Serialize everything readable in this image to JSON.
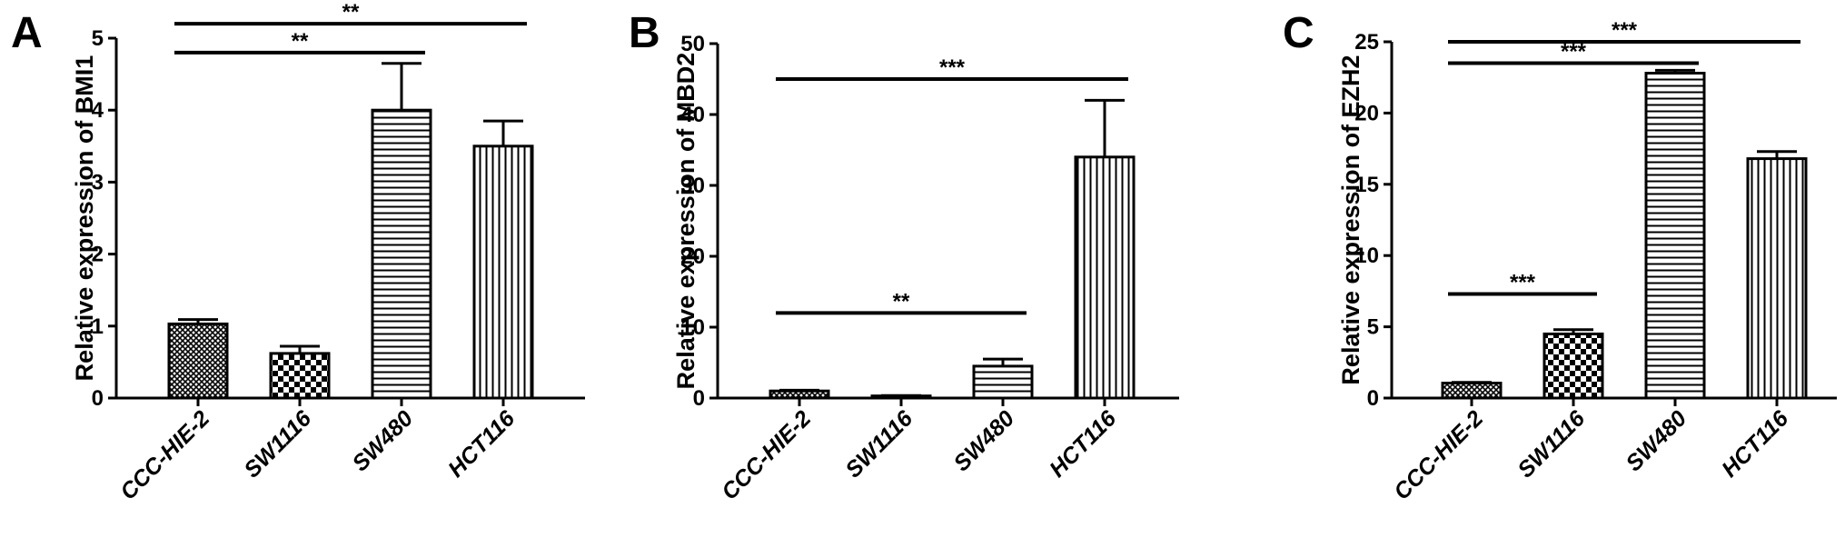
{
  "chart_data": [
    {
      "type": "bar",
      "panel": "A",
      "categories": [
        "CCC-HIE-2",
        "SW1116",
        "SW480",
        "HCT116"
      ],
      "values": [
        1.03,
        0.62,
        4.0,
        3.5
      ],
      "errors": [
        0.06,
        0.1,
        0.65,
        0.35
      ],
      "patterns": [
        "crosshatch",
        "checker",
        "hlines",
        "vlines"
      ],
      "ylabel": "Relative expression of BMI1",
      "ylim": [
        0,
        5
      ],
      "yticks": [
        0,
        1,
        2,
        3,
        4,
        5
      ],
      "significance": [
        {
          "from": 0,
          "to": 3,
          "label": "**",
          "y": 5.2
        },
        {
          "from": 0,
          "to": 2,
          "label": "**",
          "y": 4.8
        }
      ]
    },
    {
      "type": "bar",
      "panel": "B",
      "categories": [
        "CCC-HIE-2",
        "SW1116",
        "SW480",
        "HCT116"
      ],
      "values": [
        1.0,
        0.3,
        4.5,
        34.0
      ],
      "errors": [
        0.1,
        0.05,
        1.0,
        8.0
      ],
      "patterns": [
        "crosshatch",
        "checker",
        "hlines",
        "vlines"
      ],
      "ylabel": "Relative expression of MBD2",
      "ylim": [
        0,
        50
      ],
      "yticks": [
        0,
        10,
        20,
        30,
        40,
        50
      ],
      "significance": [
        {
          "from": 0,
          "to": 3,
          "label": "***",
          "y": 45
        },
        {
          "from": 0,
          "to": 2,
          "label": "**",
          "y": 12
        }
      ]
    },
    {
      "type": "bar",
      "panel": "C",
      "categories": [
        "CCC-HIE-2",
        "SW1116",
        "SW480",
        "HCT116"
      ],
      "values": [
        1.05,
        4.5,
        22.8,
        16.8
      ],
      "errors": [
        0.05,
        0.3,
        0.2,
        0.5
      ],
      "patterns": [
        "crosshatch",
        "checker",
        "hlines",
        "vlines"
      ],
      "ylabel": "Relative expression of EZH2",
      "ylim": [
        0,
        25
      ],
      "yticks": [
        0,
        5,
        10,
        15,
        20,
        25
      ],
      "significance": [
        {
          "from": 0,
          "to": 3,
          "label": "***",
          "y": 25
        },
        {
          "from": 0,
          "to": 2,
          "label": "***",
          "y": 23.5
        },
        {
          "from": 0,
          "to": 1,
          "label": "***",
          "y": 7.3
        }
      ]
    }
  ]
}
